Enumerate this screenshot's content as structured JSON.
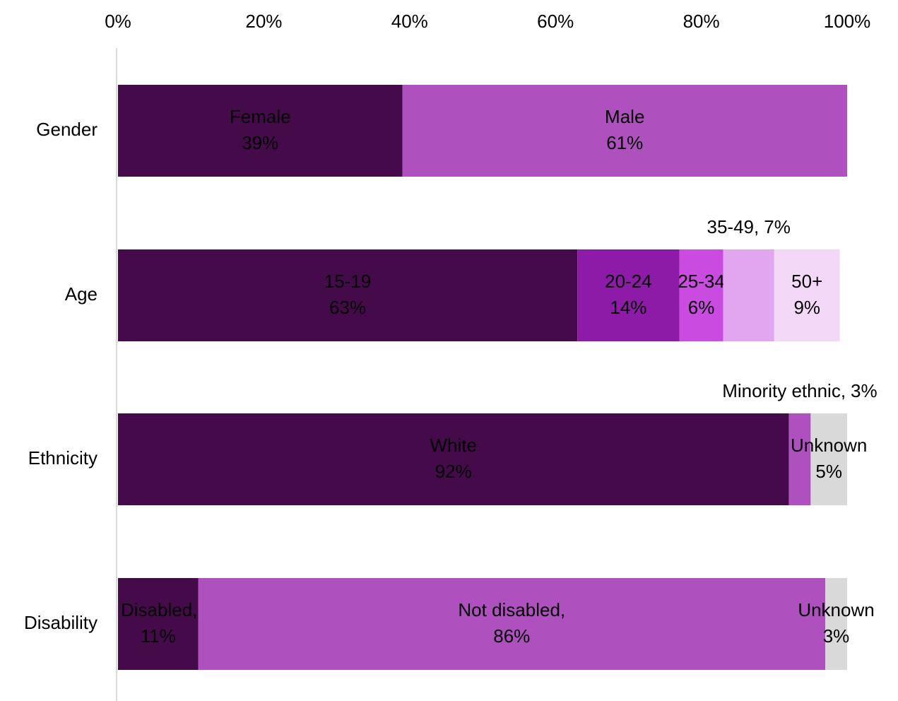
{
  "chart_data": {
    "type": "stacked-bar-horizontal",
    "xlim": [
      0,
      100
    ],
    "xticks": [
      {
        "value": 0,
        "label": "0%"
      },
      {
        "value": 20,
        "label": "20%"
      },
      {
        "value": 40,
        "label": "40%"
      },
      {
        "value": 60,
        "label": "60%"
      },
      {
        "value": 80,
        "label": "80%"
      },
      {
        "value": 100,
        "label": "100%"
      }
    ],
    "rows": [
      {
        "category": "Gender",
        "segments": [
          {
            "name": "Female",
            "value": 39,
            "value_label": "39%",
            "color": "#440a4a"
          },
          {
            "name": "Male",
            "value": 61,
            "value_label": "61%",
            "color": "#ae51be"
          }
        ]
      },
      {
        "category": "Age",
        "segments": [
          {
            "name": "15-19",
            "value": 63,
            "value_label": "63%",
            "color": "#440a4a"
          },
          {
            "name": "20-24",
            "value": 14,
            "value_label": "14%",
            "color": "#8e1aa8"
          },
          {
            "name": "25-34",
            "value": 6,
            "value_label": "6%",
            "color": "#c94be0"
          },
          {
            "name": "35-49,",
            "value": 7,
            "value_label": "7%",
            "color": "#e2a5ef"
          },
          {
            "name": "50+",
            "value": 9,
            "value_label": "9%",
            "color": "#f3d8f7"
          }
        ]
      },
      {
        "category": "Ethnicity",
        "segments": [
          {
            "name": "White",
            "value": 92,
            "value_label": "92%",
            "color": "#440a4a"
          },
          {
            "name": "Minority ethnic,",
            "value": 3,
            "value_label": "3%",
            "color": "#ae51be"
          },
          {
            "name": "Unknown",
            "value": 5,
            "value_label": "5%",
            "color": "#d9d9d9"
          }
        ]
      },
      {
        "category": "Disability",
        "segments": [
          {
            "name": "Disabled,",
            "value": 11,
            "value_label": "11%",
            "color": "#440a4a"
          },
          {
            "name": "Not disabled,",
            "value": 86,
            "value_label": "86%",
            "color": "#ae51be"
          },
          {
            "name": "Unknown",
            "value": 3,
            "value_label": "3%",
            "color": "#d9d9d9"
          }
        ]
      }
    ]
  }
}
